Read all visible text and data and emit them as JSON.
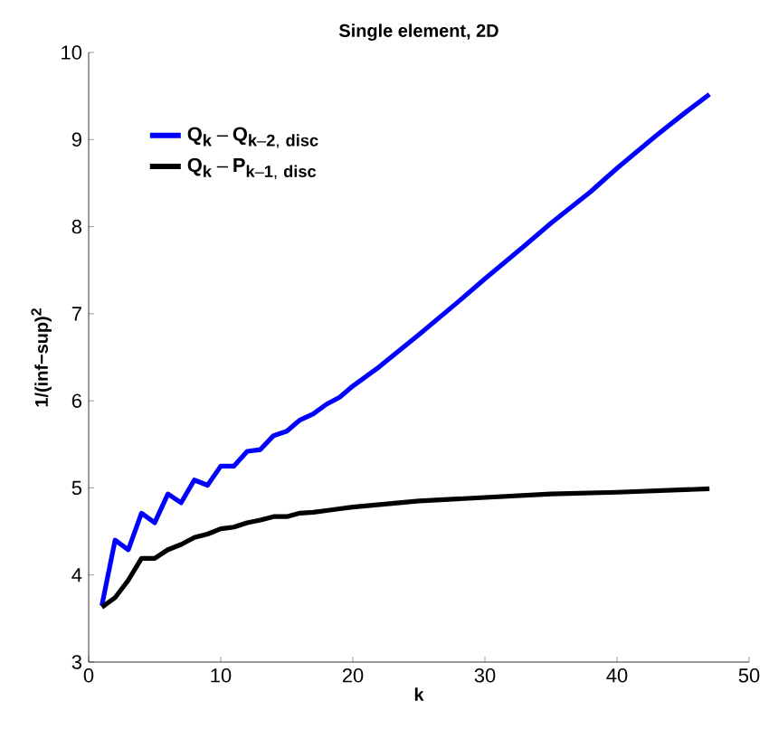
{
  "chart_data": {
    "type": "line",
    "title": "Single element, 2D",
    "xlabel": "k",
    "ylabel": "1/(inf−sup)$^{2}$",
    "xlim": [
      0,
      50
    ],
    "xticks": [
      0,
      10,
      20,
      30,
      40,
      50
    ],
    "ylim": [
      3,
      10
    ],
    "yticks": [
      3,
      4,
      5,
      6,
      7,
      8,
      9,
      10
    ],
    "legend": "top left",
    "marker": "none",
    "line_style": "solid",
    "grid": false,
    "series": [
      {
        "name": "\\mathbf{Q_{k} - Q_{k-2,\\ disc}}",
        "color": "#0000ff",
        "x": [
          1,
          2,
          3,
          4,
          5,
          6,
          7,
          8,
          9,
          10,
          11,
          12,
          13,
          14,
          15,
          16,
          17,
          18,
          19,
          20,
          22,
          25,
          28,
          30,
          33,
          35,
          38,
          40,
          43,
          45,
          47
        ],
        "values": [
          3.65,
          4.4,
          4.29,
          4.71,
          4.6,
          4.93,
          4.83,
          5.09,
          5.03,
          5.25,
          5.25,
          5.42,
          5.44,
          5.6,
          5.65,
          5.78,
          5.85,
          5.96,
          6.04,
          6.17,
          6.39,
          6.76,
          7.14,
          7.4,
          7.78,
          8.04,
          8.4,
          8.67,
          9.05,
          9.29,
          9.52
        ]
      },
      {
        "name": "\\mathbf{Q_{k} - P_{k-1,\\ disc}}",
        "color": "#000000",
        "x": [
          1,
          2,
          3,
          4,
          5,
          6,
          7,
          8,
          9,
          10,
          11,
          12,
          13,
          14,
          15,
          16,
          17,
          18,
          19,
          20,
          25,
          30,
          35,
          40,
          47
        ],
        "values": [
          3.63,
          3.74,
          3.94,
          4.19,
          4.19,
          4.29,
          4.35,
          4.43,
          4.47,
          4.53,
          4.55,
          4.6,
          4.63,
          4.67,
          4.67,
          4.71,
          4.72,
          4.74,
          4.76,
          4.78,
          4.85,
          4.89,
          4.93,
          4.95,
          4.99
        ]
      }
    ]
  }
}
